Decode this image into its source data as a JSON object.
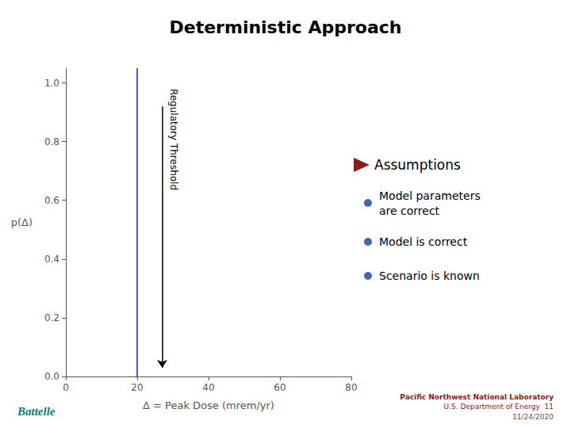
{
  "chart_data": {
    "type": "vline",
    "title": "Deterministic Approach",
    "x_label": "Δ = Peak Dose (mrem/yr)",
    "y_label": "p(Δ)",
    "x": [
      20
    ],
    "color": "#5555cc",
    "xlim": [
      0,
      80
    ],
    "ylim": [
      0.0,
      1.05
    ],
    "xticks": [
      0,
      20,
      40,
      60,
      80
    ],
    "yticks": [
      {
        "value": 0.0,
        "label": "0.0"
      },
      0.2,
      0.4,
      0.6,
      0.8,
      {
        "value": 1.0,
        "label": "1.0"
      }
    ],
    "grid": false,
    "annotations": [
      {
        "text": "Regulatory Threshold",
        "x": 27,
        "y": 0.98,
        "arrow": {
          "y_start": 0.92,
          "y_end": 0.03
        }
      }
    ],
    "side_panel": {
      "header": "Assumptions",
      "bullets": [
        "Model parameters\nare correct",
        "Model is correct",
        "Scenario is known"
      ]
    },
    "footer": [
      "Battelle",
      "Pacific Northwest National Laboratory",
      "U.S. Department of Energy  11",
      "11/24/2020"
    ]
  }
}
